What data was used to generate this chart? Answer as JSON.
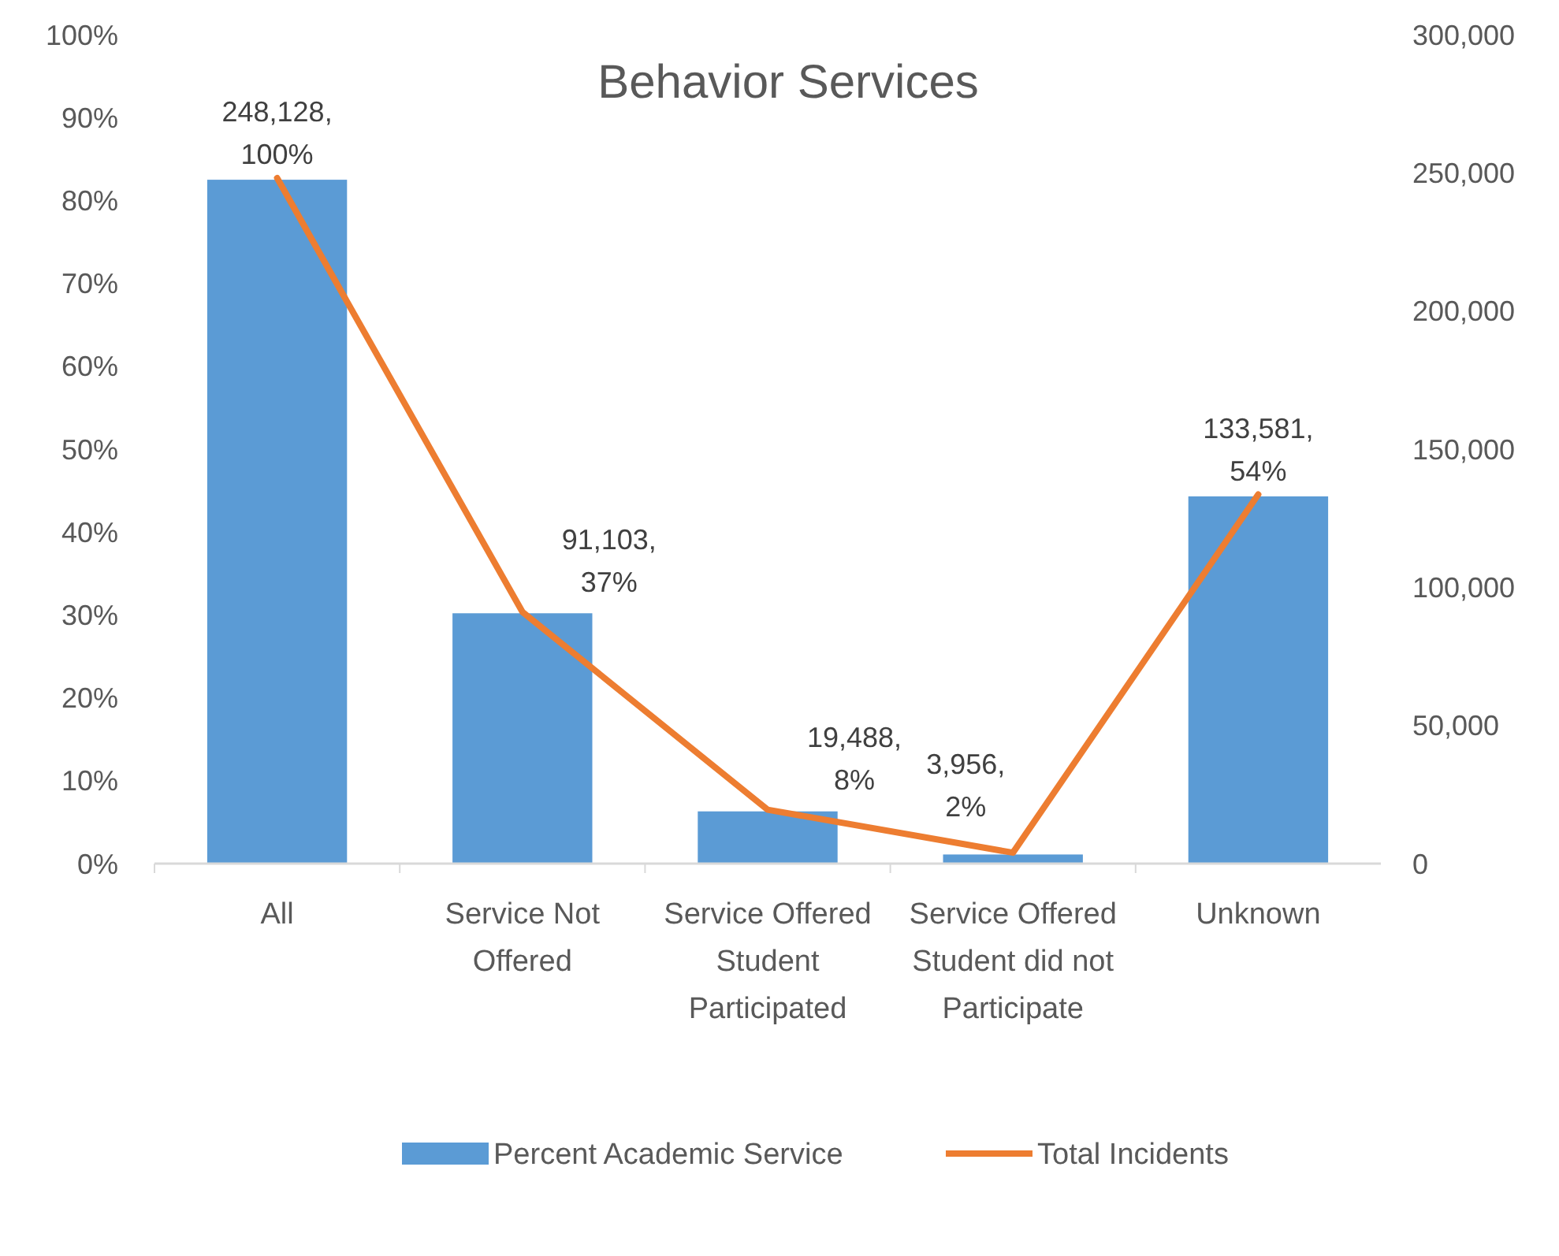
{
  "chart_data": {
    "type": "bar",
    "title": "Behavior Services",
    "categories": [
      "All",
      "Service Not Offered",
      "Service Offered Student Participated",
      "Service Offered Student did not Participate",
      "Unknown"
    ],
    "series": [
      {
        "name": "Percent Academic Service",
        "color": "#5b9bd5",
        "values": [
          82.5,
          30.2,
          6.3,
          1.1,
          44.3
        ]
      },
      {
        "name": "Total Incidents",
        "type": "line",
        "axis": "y2",
        "color": "#ed7d31",
        "values": [
          248128,
          91103,
          19488,
          3956,
          133581
        ],
        "value_labels": [
          "248,128, 100%",
          "91,103, 37%",
          "19,488, 8%",
          "3,956, 2%",
          "133,581, 54%"
        ]
      }
    ],
    "ylim": [
      0,
      100
    ],
    "yticks": [
      {
        "value": 0,
        "label": "0%"
      },
      {
        "value": 10,
        "label": "10%"
      },
      {
        "value": 20,
        "label": "20%"
      },
      {
        "value": 30,
        "label": "30%"
      },
      {
        "value": 40,
        "label": "40%"
      },
      {
        "value": 50,
        "label": "50%"
      },
      {
        "value": 60,
        "label": "60%"
      },
      {
        "value": 70,
        "label": "70%"
      },
      {
        "value": 80,
        "label": "80%"
      },
      {
        "value": 90,
        "label": "90%"
      },
      {
        "value": 100,
        "label": "100%"
      }
    ],
    "y2lim": [
      0,
      300000
    ],
    "y2ticks": [
      0,
      {
        "value": 50000,
        "label": "50,000"
      },
      {
        "value": 100000,
        "label": "100,000"
      },
      {
        "value": 150000,
        "label": "150,000"
      },
      {
        "value": 200000,
        "label": "200,000"
      },
      {
        "value": 250000,
        "label": "250,000"
      },
      {
        "value": 300000,
        "label": "300,000"
      }
    ],
    "legend": "bottom",
    "grid": false,
    "marker": "none"
  }
}
